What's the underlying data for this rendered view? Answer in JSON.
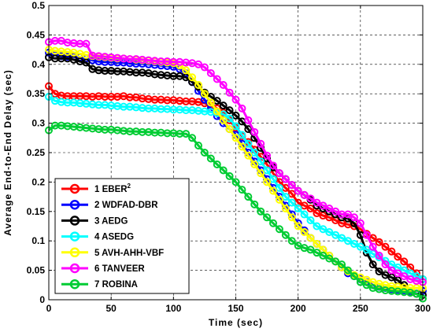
{
  "chart_data": {
    "type": "line",
    "title": "",
    "xlabel": "Time (sec)",
    "ylabel": "Average End-to-End Delay (sec)",
    "xlim": [
      0,
      300
    ],
    "ylim": [
      0,
      0.5
    ],
    "xticks": [
      "0",
      "50",
      "100",
      "150",
      "200",
      "250",
      "300"
    ],
    "yticks": [
      "0",
      "0.05",
      "0.1",
      "0.15",
      "0.2",
      "0.25",
      "0.3",
      "0.35",
      "0.4",
      "0.45",
      "0.5"
    ],
    "grid": true,
    "legend_position": "bottom-left",
    "series": [
      {
        "name": "1 EBER",
        "name_sup": "2",
        "color": "#ff0000",
        "x": [
          0,
          5,
          10,
          15,
          20,
          25,
          30,
          35,
          40,
          45,
          50,
          55,
          60,
          65,
          70,
          75,
          80,
          85,
          90,
          95,
          100,
          105,
          110,
          115,
          120,
          125,
          130,
          135,
          140,
          145,
          150,
          155,
          160,
          165,
          170,
          175,
          180,
          185,
          190,
          195,
          200,
          205,
          210,
          215,
          220,
          225,
          230,
          235,
          240,
          245,
          250,
          255,
          260,
          265,
          270,
          275,
          280,
          285,
          290,
          295,
          300
        ],
        "y": [
          0.363,
          0.35,
          0.347,
          0.346,
          0.346,
          0.346,
          0.346,
          0.345,
          0.346,
          0.345,
          0.345,
          0.345,
          0.346,
          0.344,
          0.344,
          0.342,
          0.341,
          0.34,
          0.34,
          0.339,
          0.339,
          0.338,
          0.337,
          0.337,
          0.336,
          0.334,
          0.33,
          0.325,
          0.318,
          0.305,
          0.292,
          0.278,
          0.268,
          0.255,
          0.243,
          0.23,
          0.215,
          0.2,
          0.19,
          0.18,
          0.165,
          0.16,
          0.155,
          0.147,
          0.143,
          0.14,
          0.135,
          0.13,
          0.128,
          0.125,
          0.12,
          0.112,
          0.105,
          0.098,
          0.09,
          0.082,
          0.073,
          0.065,
          0.055,
          0.045,
          0.035
        ]
      },
      {
        "name": "2 WDFAD-DBR",
        "color": "#0000ff",
        "x": [
          0,
          5,
          10,
          15,
          20,
          25,
          30,
          35,
          40,
          45,
          50,
          55,
          60,
          65,
          70,
          75,
          80,
          85,
          90,
          95,
          100,
          105,
          110,
          115,
          120,
          125,
          130,
          135,
          140,
          145,
          150,
          155,
          160,
          165,
          170,
          175,
          180,
          185,
          190,
          195,
          200,
          205,
          210,
          215,
          220,
          225,
          230,
          235,
          240,
          245,
          250,
          255,
          260,
          265,
          270,
          275,
          280,
          285,
          290,
          295,
          300
        ],
        "y": [
          0.42,
          0.416,
          0.414,
          0.413,
          0.413,
          0.412,
          0.41,
          0.407,
          0.405,
          0.404,
          0.404,
          0.403,
          0.403,
          0.402,
          0.401,
          0.401,
          0.4,
          0.399,
          0.398,
          0.397,
          0.396,
          0.392,
          0.385,
          0.37,
          0.355,
          0.34,
          0.325,
          0.312,
          0.3,
          0.29,
          0.28,
          0.265,
          0.25,
          0.235,
          0.22,
          0.205,
          0.19,
          0.175,
          0.16,
          0.145,
          0.13,
          0.118,
          0.105,
          0.095,
          0.085,
          0.075,
          0.065,
          0.055,
          0.045,
          0.04,
          0.035,
          0.03,
          0.025,
          0.022,
          0.02,
          0.018,
          0.017,
          0.016,
          0.015,
          0.015,
          0.015
        ]
      },
      {
        "name": "3 AEDG",
        "color": "#000000",
        "x": [
          0,
          5,
          10,
          15,
          20,
          25,
          30,
          35,
          40,
          45,
          50,
          55,
          60,
          65,
          70,
          75,
          80,
          85,
          90,
          95,
          100,
          105,
          110,
          115,
          120,
          125,
          130,
          135,
          140,
          145,
          150,
          155,
          160,
          165,
          170,
          175,
          180,
          185,
          190,
          195,
          200,
          205,
          210,
          215,
          220,
          225,
          230,
          235,
          240,
          245,
          250,
          255,
          260,
          265,
          270,
          275,
          280,
          285,
          290,
          295,
          300
        ],
        "y": [
          0.412,
          0.41,
          0.41,
          0.41,
          0.408,
          0.405,
          0.403,
          0.392,
          0.39,
          0.389,
          0.389,
          0.388,
          0.388,
          0.387,
          0.386,
          0.386,
          0.385,
          0.383,
          0.382,
          0.381,
          0.38,
          0.38,
          0.378,
          0.37,
          0.362,
          0.352,
          0.345,
          0.338,
          0.33,
          0.322,
          0.313,
          0.303,
          0.29,
          0.275,
          0.258,
          0.24,
          0.225,
          0.215,
          0.205,
          0.195,
          0.185,
          0.178,
          0.17,
          0.16,
          0.155,
          0.15,
          0.145,
          0.14,
          0.138,
          0.13,
          0.11,
          0.08,
          0.06,
          0.048,
          0.042,
          0.038,
          0.033,
          0.025,
          0.012,
          0.01,
          0.008
        ]
      },
      {
        "name": "4 ASEDG",
        "color": "#00ffff",
        "x": [
          0,
          5,
          10,
          15,
          20,
          25,
          30,
          35,
          40,
          45,
          50,
          55,
          60,
          65,
          70,
          75,
          80,
          85,
          90,
          95,
          100,
          105,
          110,
          115,
          120,
          125,
          130,
          135,
          140,
          145,
          150,
          155,
          160,
          165,
          170,
          175,
          180,
          185,
          190,
          195,
          200,
          205,
          210,
          215,
          220,
          225,
          230,
          235,
          240,
          245,
          250,
          255,
          260,
          265,
          270,
          275,
          280,
          285,
          290,
          295,
          300
        ],
        "y": [
          0.345,
          0.338,
          0.336,
          0.335,
          0.335,
          0.334,
          0.333,
          0.332,
          0.331,
          0.331,
          0.33,
          0.329,
          0.328,
          0.328,
          0.327,
          0.326,
          0.325,
          0.325,
          0.324,
          0.324,
          0.323,
          0.323,
          0.322,
          0.322,
          0.321,
          0.32,
          0.319,
          0.317,
          0.315,
          0.308,
          0.295,
          0.28,
          0.265,
          0.25,
          0.235,
          0.22,
          0.205,
          0.19,
          0.175,
          0.165,
          0.155,
          0.145,
          0.135,
          0.125,
          0.12,
          0.115,
          0.11,
          0.105,
          0.1,
          0.095,
          0.09,
          0.085,
          0.078,
          0.072,
          0.066,
          0.06,
          0.055,
          0.05,
          0.045,
          0.04,
          0.035
        ]
      },
      {
        "name": "5 AVH-AHH-VBF",
        "color": "#ffff00",
        "x": [
          0,
          5,
          10,
          15,
          20,
          25,
          30,
          35,
          40,
          45,
          50,
          55,
          60,
          65,
          70,
          75,
          80,
          85,
          90,
          95,
          100,
          105,
          110,
          115,
          120,
          125,
          130,
          135,
          140,
          145,
          150,
          155,
          160,
          165,
          170,
          175,
          180,
          185,
          190,
          195,
          200,
          205,
          210,
          215,
          220,
          225,
          230,
          235,
          240,
          245,
          250,
          255,
          260,
          265,
          270,
          275,
          280,
          285,
          290,
          295,
          300
        ],
        "y": [
          0.425,
          0.423,
          0.422,
          0.421,
          0.42,
          0.418,
          0.416,
          0.414,
          0.413,
          0.412,
          0.411,
          0.41,
          0.41,
          0.409,
          0.408,
          0.407,
          0.406,
          0.405,
          0.404,
          0.403,
          0.402,
          0.398,
          0.39,
          0.378,
          0.365,
          0.35,
          0.335,
          0.32,
          0.305,
          0.29,
          0.275,
          0.26,
          0.245,
          0.23,
          0.215,
          0.2,
          0.185,
          0.17,
          0.155,
          0.14,
          0.125,
          0.115,
          0.105,
          0.095,
          0.085,
          0.075,
          0.065,
          0.055,
          0.048,
          0.042,
          0.038,
          0.034,
          0.03,
          0.027,
          0.025,
          0.023,
          0.022,
          0.021,
          0.02,
          0.02,
          0.02
        ]
      },
      {
        "name": "6 TANVEER",
        "color": "#ff00ff",
        "x": [
          0,
          5,
          10,
          15,
          20,
          25,
          30,
          35,
          40,
          45,
          50,
          55,
          60,
          65,
          70,
          75,
          80,
          85,
          90,
          95,
          100,
          105,
          110,
          115,
          120,
          125,
          130,
          135,
          140,
          145,
          150,
          155,
          160,
          165,
          170,
          175,
          180,
          185,
          190,
          195,
          200,
          205,
          210,
          215,
          220,
          225,
          230,
          235,
          240,
          245,
          250,
          255,
          260,
          265,
          270,
          275,
          280,
          285,
          290,
          295,
          300
        ],
        "y": [
          0.438,
          0.44,
          0.44,
          0.437,
          0.436,
          0.435,
          0.435,
          0.415,
          0.414,
          0.413,
          0.412,
          0.411,
          0.41,
          0.409,
          0.409,
          0.408,
          0.407,
          0.406,
          0.405,
          0.405,
          0.404,
          0.404,
          0.403,
          0.402,
          0.4,
          0.395,
          0.385,
          0.375,
          0.365,
          0.352,
          0.34,
          0.325,
          0.305,
          0.285,
          0.265,
          0.245,
          0.228,
          0.215,
          0.205,
          0.195,
          0.185,
          0.178,
          0.172,
          0.165,
          0.16,
          0.155,
          0.15,
          0.145,
          0.145,
          0.14,
          0.13,
          0.11,
          0.09,
          0.075,
          0.06,
          0.05,
          0.045,
          0.04,
          0.035,
          0.032,
          0.03
        ]
      },
      {
        "name": "7 ROBINA",
        "color": "#00cc33",
        "x": [
          0,
          5,
          10,
          15,
          20,
          25,
          30,
          35,
          40,
          45,
          50,
          55,
          60,
          65,
          70,
          75,
          80,
          85,
          90,
          95,
          100,
          105,
          110,
          115,
          120,
          125,
          130,
          135,
          140,
          145,
          150,
          155,
          160,
          165,
          170,
          175,
          180,
          185,
          190,
          195,
          200,
          205,
          210,
          215,
          220,
          225,
          230,
          235,
          240,
          245,
          250,
          255,
          260,
          265,
          270,
          275,
          280,
          285,
          290,
          295,
          300
        ],
        "y": [
          0.288,
          0.296,
          0.296,
          0.295,
          0.294,
          0.293,
          0.292,
          0.291,
          0.29,
          0.289,
          0.289,
          0.288,
          0.287,
          0.286,
          0.286,
          0.285,
          0.285,
          0.284,
          0.284,
          0.283,
          0.283,
          0.282,
          0.282,
          0.275,
          0.262,
          0.25,
          0.24,
          0.23,
          0.22,
          0.21,
          0.2,
          0.187,
          0.175,
          0.162,
          0.15,
          0.14,
          0.13,
          0.12,
          0.11,
          0.1,
          0.092,
          0.088,
          0.085,
          0.08,
          0.075,
          0.07,
          0.065,
          0.06,
          0.05,
          0.04,
          0.03,
          0.025,
          0.02,
          0.018,
          0.016,
          0.015,
          0.014,
          0.013,
          0.012,
          0.01,
          0.002
        ]
      }
    ]
  }
}
